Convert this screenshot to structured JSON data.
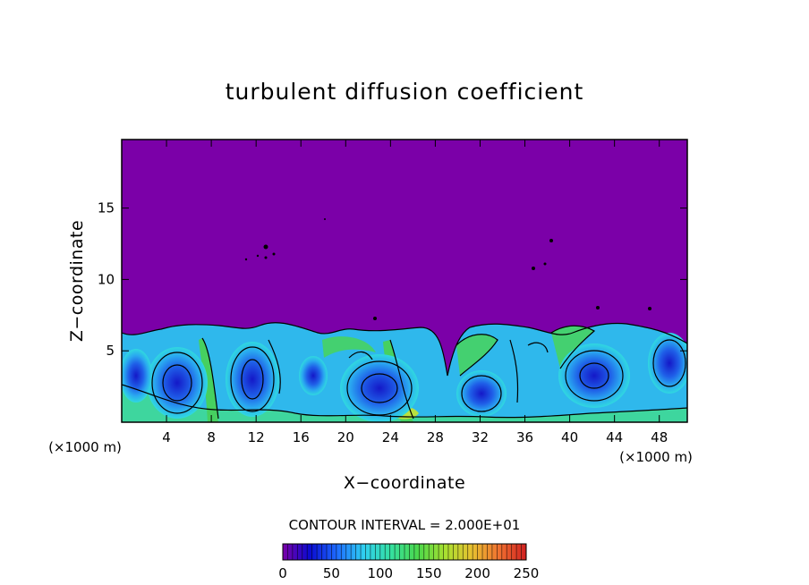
{
  "chart_data": {
    "type": "heatmap",
    "title": "turbulent diffusion coefficient",
    "xlabel": "X−coordinate",
    "ylabel": "Z−coordinate",
    "x_unit_left": "(×1000 m)",
    "x_unit_right": "(×1000 m)",
    "xlim": [
      0,
      50.5
    ],
    "ylim": [
      0,
      19.8
    ],
    "x_ticks": [
      4,
      8,
      12,
      16,
      20,
      24,
      28,
      32,
      36,
      40,
      44,
      48
    ],
    "y_ticks": [
      5,
      10,
      15
    ],
    "contour_interval_text": "CONTOUR INTERVAL = 2.000E+01",
    "colorbar": {
      "range": [
        0,
        250
      ],
      "tick_values": [
        0,
        50,
        100,
        150,
        200,
        250
      ],
      "colors": [
        "#7b00a8",
        "#0a0ad0",
        "#1e6cff",
        "#2fd0f0",
        "#35e0a0",
        "#4bd84b",
        "#a8e030",
        "#e8c030",
        "#f07030",
        "#d02020"
      ]
    },
    "background_value_color": "#7b00a8",
    "boundary_layer_top_approx": 7
  }
}
